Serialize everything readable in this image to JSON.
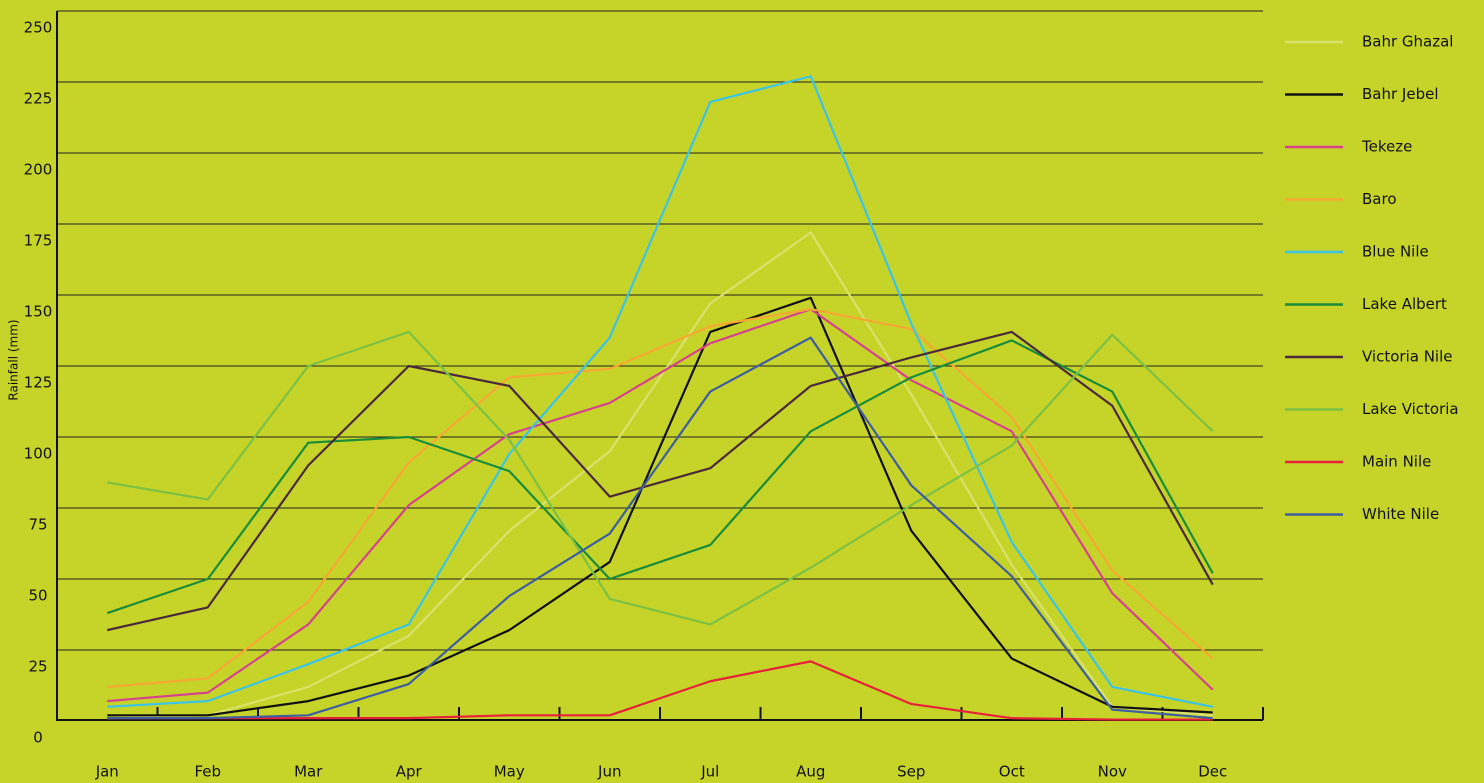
{
  "chart_data": {
    "type": "line",
    "y_label": "Rainfall (mm)",
    "categories": [
      "Jan",
      "Feb",
      "Mar",
      "Apr",
      "May",
      "Jun",
      "Jul",
      "Aug",
      "Sep",
      "Oct",
      "Nov",
      "Dec"
    ],
    "ylim": [
      0,
      250
    ],
    "yticks": [
      0,
      25,
      50,
      75,
      100,
      125,
      150,
      175,
      200,
      225,
      250
    ],
    "grid": true,
    "legend": "right",
    "series": [
      {
        "name": "Bahr Ghazal",
        "color": "#d9e26b",
        "values": [
          1,
          2,
          12,
          30,
          67,
          95,
          147,
          172,
          115,
          55,
          5,
          2
        ]
      },
      {
        "name": "Bahr Jebel",
        "color": "#111111",
        "values": [
          2,
          2,
          7,
          16,
          32,
          56,
          137,
          149,
          67,
          22,
          5,
          3
        ]
      },
      {
        "name": "Tekeze",
        "color": "#d6428d",
        "values": [
          7,
          10,
          34,
          76,
          101,
          112,
          133,
          145,
          120,
          102,
          45,
          11
        ]
      },
      {
        "name": "Baro",
        "color": "#f7a833",
        "values": [
          12,
          15,
          42,
          91,
          121,
          124,
          139,
          145,
          138,
          107,
          53,
          22
        ]
      },
      {
        "name": "Blue Nile",
        "color": "#3bc4e6",
        "values": [
          5,
          7,
          20,
          34,
          94,
          135,
          218,
          227,
          140,
          63,
          12,
          5
        ]
      },
      {
        "name": "Lake Albert",
        "color": "#1a8c3a",
        "values": [
          38,
          50,
          98,
          100,
          88,
          50,
          62,
          102,
          121,
          134,
          116,
          52
        ]
      },
      {
        "name": "Victoria Nile",
        "color": "#4a2a3a",
        "values": [
          32,
          40,
          90,
          125,
          118,
          79,
          89,
          118,
          128,
          137,
          111,
          48
        ]
      },
      {
        "name": "Lake Victoria",
        "color": "#7cc143",
        "values": [
          84,
          78,
          125,
          137,
          99,
          43,
          34,
          54,
          76,
          97,
          136,
          102
        ]
      },
      {
        "name": "Main Nile",
        "color": "#e8213b",
        "values": [
          1,
          1,
          1,
          1,
          2,
          2,
          14,
          21,
          6,
          1,
          0.5,
          0.5
        ]
      },
      {
        "name": "White Nile",
        "color": "#3e5ea0",
        "values": [
          1,
          1,
          2,
          13,
          44,
          66,
          116,
          135,
          83,
          51,
          4,
          1
        ]
      }
    ]
  }
}
